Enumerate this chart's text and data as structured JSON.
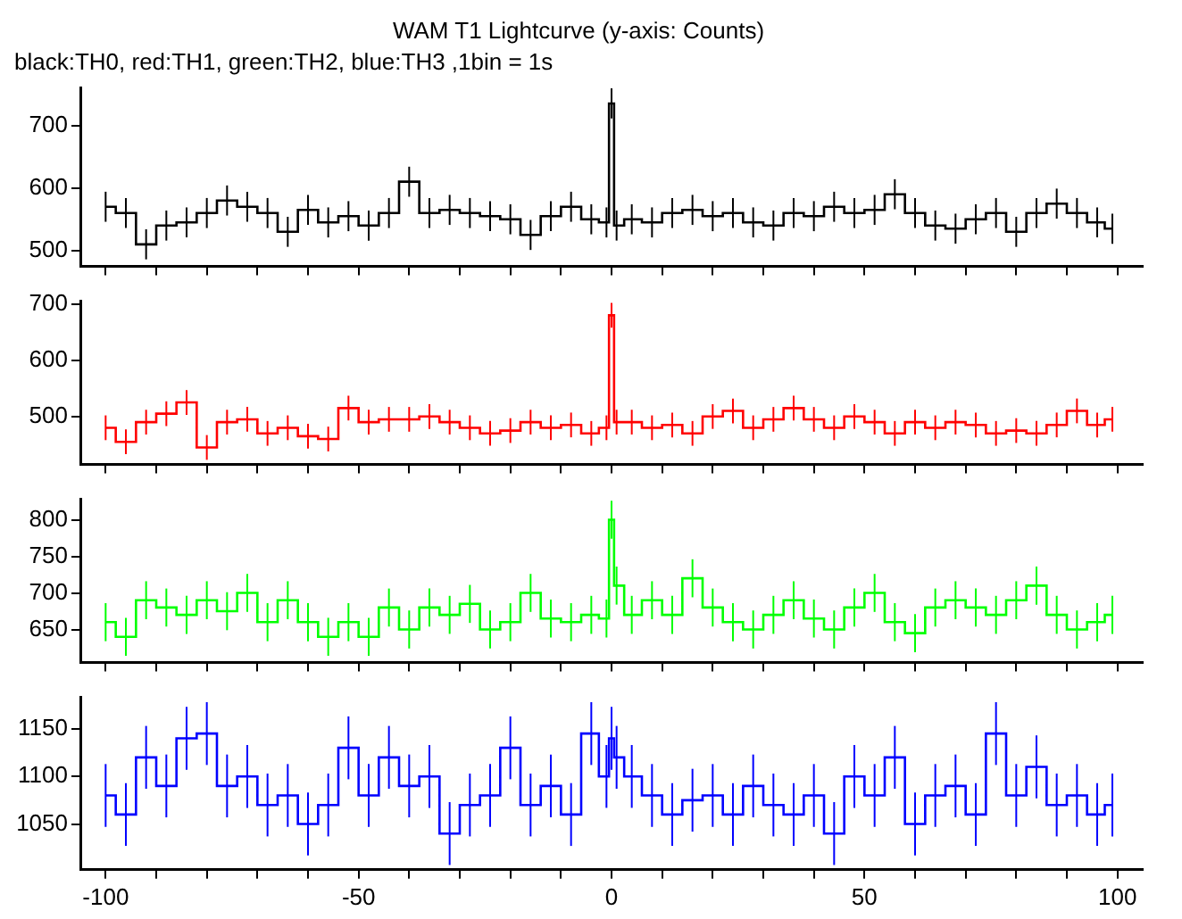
{
  "chart_data": [
    {
      "type": "step",
      "title": "WAM T1 Lightcurve (y-axis: Counts)",
      "subtitle": "black:TH0, red:TH1, green:TH2, blue:TH3 ,1bin = 1s",
      "tick_labels": "y",
      "x": [
        -100,
        -96,
        -92,
        -88,
        -84,
        -80,
        -76,
        -72,
        -68,
        -64,
        -60,
        -56,
        -52,
        -48,
        -44,
        -40,
        -36,
        -32,
        -28,
        -24,
        -20,
        -16,
        -12,
        -8,
        -4,
        -1,
        0,
        1,
        4,
        8,
        12,
        16,
        20,
        24,
        28,
        32,
        36,
        40,
        44,
        48,
        52,
        56,
        60,
        64,
        68,
        72,
        76,
        80,
        84,
        88,
        92,
        96,
        99
      ],
      "xlim": [
        -105,
        105
      ],
      "xticks": [
        -100,
        {
          "value": -90,
          "label": null
        },
        {
          "value": -80,
          "label": null
        },
        {
          "value": -70,
          "label": null
        },
        {
          "value": -60,
          "label": null
        },
        -50,
        {
          "value": -40,
          "label": null
        },
        {
          "value": -30,
          "label": null
        },
        {
          "value": -20,
          "label": null
        },
        {
          "value": -10,
          "label": null
        },
        0,
        {
          "value": 10,
          "label": null
        },
        {
          "value": 20,
          "label": null
        },
        {
          "value": 30,
          "label": null
        },
        {
          "value": 40,
          "label": null
        },
        50,
        {
          "value": 60,
          "label": null
        },
        {
          "value": 70,
          "label": null
        },
        {
          "value": 80,
          "label": null
        },
        {
          "value": 90,
          "label": null
        },
        100
      ],
      "ylim": [
        475,
        760
      ],
      "yticks": [
        500,
        600,
        700
      ],
      "series": [
        {
          "color": "#000000",
          "values": [
            570,
            560,
            510,
            540,
            545,
            560,
            580,
            570,
            560,
            530,
            565,
            545,
            555,
            540,
            560,
            610,
            560,
            565,
            560,
            555,
            550,
            525,
            555,
            570,
            550,
            545,
            735,
            540,
            550,
            545,
            560,
            565,
            555,
            560,
            545,
            540,
            560,
            555,
            570,
            560,
            565,
            590,
            560,
            540,
            535,
            550,
            560,
            530,
            560,
            575,
            560,
            545,
            535
          ],
          "errors": [
            24,
            24,
            24,
            24,
            24,
            24,
            24,
            24,
            24,
            24,
            24,
            24,
            24,
            24,
            24,
            24,
            24,
            24,
            24,
            24,
            24,
            24,
            24,
            24,
            24,
            24,
            24,
            24,
            24,
            24,
            24,
            24,
            24,
            24,
            24,
            24,
            24,
            24,
            24,
            24,
            24,
            24,
            24,
            24,
            24,
            24,
            24,
            24,
            24,
            24,
            24,
            24,
            24
          ]
        }
      ]
    },
    {
      "type": "step",
      "tick_labels": "y",
      "x": [
        -100,
        -96,
        -92,
        -88,
        -84,
        -80,
        -76,
        -72,
        -68,
        -64,
        -60,
        -56,
        -52,
        -48,
        -44,
        -40,
        -36,
        -32,
        -28,
        -24,
        -20,
        -16,
        -12,
        -8,
        -4,
        -1,
        0,
        1,
        4,
        8,
        12,
        16,
        20,
        24,
        28,
        32,
        36,
        40,
        44,
        48,
        52,
        56,
        60,
        64,
        68,
        72,
        76,
        80,
        84,
        88,
        92,
        96,
        99
      ],
      "xlim": [
        -105,
        105
      ],
      "xticks": [
        -100,
        {
          "value": -90,
          "label": null
        },
        {
          "value": -80,
          "label": null
        },
        {
          "value": -70,
          "label": null
        },
        {
          "value": -60,
          "label": null
        },
        -50,
        {
          "value": -40,
          "label": null
        },
        {
          "value": -30,
          "label": null
        },
        {
          "value": -20,
          "label": null
        },
        {
          "value": -10,
          "label": null
        },
        0,
        {
          "value": 10,
          "label": null
        },
        {
          "value": 20,
          "label": null
        },
        {
          "value": 30,
          "label": null
        },
        {
          "value": 40,
          "label": null
        },
        50,
        {
          "value": 60,
          "label": null
        },
        {
          "value": 70,
          "label": null
        },
        {
          "value": 80,
          "label": null
        },
        {
          "value": 90,
          "label": null
        },
        100
      ],
      "ylim": [
        415,
        705
      ],
      "yticks": [
        500,
        600,
        700
      ],
      "series": [
        {
          "color": "#ff0000",
          "values": [
            480,
            455,
            490,
            505,
            525,
            445,
            490,
            495,
            470,
            480,
            465,
            460,
            515,
            490,
            495,
            495,
            500,
            490,
            480,
            470,
            475,
            490,
            480,
            485,
            470,
            480,
            680,
            490,
            490,
            480,
            485,
            470,
            500,
            510,
            480,
            495,
            515,
            495,
            480,
            500,
            490,
            470,
            490,
            480,
            490,
            485,
            470,
            475,
            470,
            485,
            510,
            485,
            495
          ],
          "errors": [
            22,
            22,
            22,
            22,
            22,
            22,
            22,
            22,
            22,
            22,
            22,
            22,
            22,
            22,
            22,
            22,
            22,
            22,
            22,
            22,
            22,
            22,
            22,
            22,
            22,
            22,
            22,
            22,
            22,
            22,
            22,
            22,
            22,
            22,
            22,
            22,
            22,
            22,
            22,
            22,
            22,
            22,
            22,
            22,
            22,
            22,
            22,
            22,
            22,
            22,
            22,
            22,
            22
          ]
        }
      ]
    },
    {
      "type": "step",
      "tick_labels": "y",
      "x": [
        -100,
        -96,
        -92,
        -88,
        -84,
        -80,
        -76,
        -72,
        -68,
        -64,
        -60,
        -56,
        -52,
        -48,
        -44,
        -40,
        -36,
        -32,
        -28,
        -24,
        -20,
        -16,
        -12,
        -8,
        -4,
        -1,
        0,
        1,
        4,
        8,
        12,
        16,
        20,
        24,
        28,
        32,
        36,
        40,
        44,
        48,
        52,
        56,
        60,
        64,
        68,
        72,
        76,
        80,
        84,
        88,
        92,
        96,
        99
      ],
      "xlim": [
        -105,
        105
      ],
      "xticks": [
        -100,
        {
          "value": -90,
          "label": null
        },
        {
          "value": -80,
          "label": null
        },
        {
          "value": -70,
          "label": null
        },
        {
          "value": -60,
          "label": null
        },
        -50,
        {
          "value": -40,
          "label": null
        },
        {
          "value": -30,
          "label": null
        },
        {
          "value": -20,
          "label": null
        },
        {
          "value": -10,
          "label": null
        },
        0,
        {
          "value": 10,
          "label": null
        },
        {
          "value": 20,
          "label": null
        },
        {
          "value": 30,
          "label": null
        },
        {
          "value": 40,
          "label": null
        },
        50,
        {
          "value": 60,
          "label": null
        },
        {
          "value": 70,
          "label": null
        },
        {
          "value": 80,
          "label": null
        },
        {
          "value": 90,
          "label": null
        },
        100
      ],
      "ylim": [
        605,
        828
      ],
      "yticks": [
        650,
        700,
        750,
        800
      ],
      "series": [
        {
          "color": "#00ff00",
          "values": [
            660,
            640,
            690,
            680,
            670,
            690,
            675,
            700,
            660,
            690,
            660,
            640,
            660,
            640,
            680,
            650,
            680,
            670,
            685,
            650,
            660,
            700,
            665,
            660,
            670,
            665,
            800,
            710,
            670,
            690,
            670,
            720,
            680,
            660,
            650,
            670,
            690,
            665,
            650,
            680,
            700,
            660,
            645,
            680,
            690,
            680,
            670,
            690,
            710,
            670,
            650,
            660,
            670
          ],
          "errors": [
            26,
            26,
            26,
            26,
            26,
            26,
            26,
            26,
            26,
            26,
            26,
            26,
            26,
            26,
            26,
            26,
            26,
            26,
            26,
            26,
            26,
            26,
            26,
            26,
            26,
            26,
            26,
            26,
            26,
            26,
            26,
            26,
            26,
            26,
            26,
            26,
            26,
            26,
            26,
            26,
            26,
            26,
            26,
            26,
            26,
            26,
            26,
            26,
            26,
            26,
            26,
            26,
            26
          ]
        }
      ]
    },
    {
      "type": "step",
      "x": [
        -100,
        -96,
        -92,
        -88,
        -84,
        -80,
        -76,
        -72,
        -68,
        -64,
        -60,
        -56,
        -52,
        -48,
        -44,
        -40,
        -36,
        -32,
        -28,
        -24,
        -20,
        -16,
        -12,
        -8,
        -4,
        -1,
        0,
        1,
        4,
        8,
        12,
        16,
        20,
        24,
        28,
        32,
        36,
        40,
        44,
        48,
        52,
        56,
        60,
        64,
        68,
        72,
        76,
        80,
        84,
        88,
        92,
        96,
        99
      ],
      "xlim": [
        -105,
        105
      ],
      "xticks": [
        -100,
        {
          "value": -90,
          "label": null
        },
        {
          "value": -80,
          "label": null
        },
        {
          "value": -70,
          "label": null
        },
        {
          "value": -60,
          "label": null
        },
        -50,
        {
          "value": -40,
          "label": null
        },
        {
          "value": -30,
          "label": null
        },
        {
          "value": -20,
          "label": null
        },
        {
          "value": -10,
          "label": null
        },
        0,
        {
          "value": 10,
          "label": null
        },
        {
          "value": 20,
          "label": null
        },
        {
          "value": 30,
          "label": null
        },
        {
          "value": 40,
          "label": null
        },
        50,
        {
          "value": 60,
          "label": null
        },
        {
          "value": 70,
          "label": null
        },
        {
          "value": 80,
          "label": null
        },
        {
          "value": 90,
          "label": null
        },
        100
      ],
      "ylim": [
        1002,
        1183
      ],
      "yticks": [
        1050,
        1100,
        1150
      ],
      "series": [
        {
          "color": "#0000ff",
          "values": [
            1080,
            1060,
            1120,
            1090,
            1140,
            1145,
            1090,
            1100,
            1070,
            1080,
            1050,
            1070,
            1130,
            1080,
            1120,
            1090,
            1100,
            1040,
            1070,
            1080,
            1130,
            1070,
            1090,
            1060,
            1145,
            1100,
            1140,
            1120,
            1100,
            1080,
            1060,
            1075,
            1080,
            1060,
            1090,
            1070,
            1060,
            1080,
            1040,
            1100,
            1080,
            1120,
            1050,
            1080,
            1090,
            1060,
            1145,
            1080,
            1110,
            1070,
            1080,
            1060,
            1070
          ],
          "errors": [
            33,
            33,
            33,
            33,
            33,
            33,
            33,
            33,
            33,
            33,
            33,
            33,
            33,
            33,
            33,
            33,
            33,
            33,
            33,
            33,
            33,
            33,
            33,
            33,
            33,
            33,
            33,
            33,
            33,
            33,
            33,
            33,
            33,
            33,
            33,
            33,
            33,
            33,
            33,
            33,
            33,
            33,
            33,
            33,
            33,
            33,
            33,
            33,
            33,
            33,
            33,
            33,
            33
          ]
        }
      ]
    }
  ]
}
